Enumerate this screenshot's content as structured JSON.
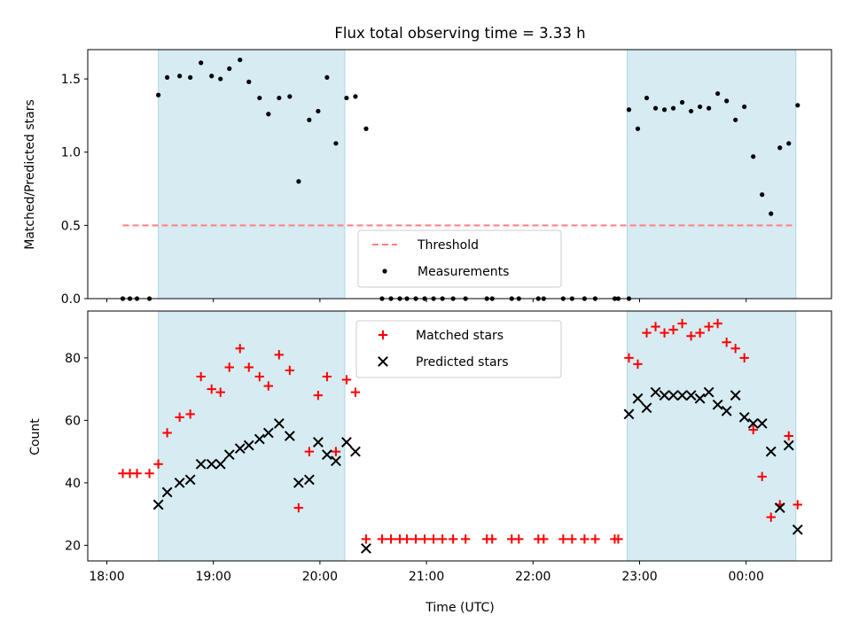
{
  "chart_data": [
    {
      "type": "scatter",
      "title": "Flux total observing time = 3.33 h",
      "ylabel": "Matched/Predicted stars",
      "xlabel": "",
      "xlim": [
        "18:00",
        "01:00"
      ],
      "ylim": [
        0,
        1.7
      ],
      "yticks": [
        "0.0",
        "0.5",
        "1.0",
        "1.5"
      ],
      "grid": false,
      "legend_position": "bottom-center",
      "shaded_intervals": [
        [
          "18:29",
          "20:14"
        ],
        [
          "22:53",
          "00:28"
        ]
      ],
      "threshold": {
        "name": "Threshold",
        "y": 0.5,
        "x_from": "18:09",
        "x_to": "00:28",
        "color": "#ff7f7f"
      },
      "series": [
        {
          "name": "Measurements",
          "marker": "dot",
          "color": "#000000",
          "points": [
            [
              "18:09",
              0
            ],
            [
              "18:13",
              0
            ],
            [
              "18:17",
              0
            ],
            [
              "18:24",
              0
            ],
            [
              "18:29",
              1.39
            ],
            [
              "18:34",
              1.51
            ],
            [
              "18:41",
              1.52
            ],
            [
              "18:47",
              1.51
            ],
            [
              "18:53",
              1.61
            ],
            [
              "18:59",
              1.52
            ],
            [
              "19:04",
              1.5
            ],
            [
              "19:09",
              1.57
            ],
            [
              "19:15",
              1.63
            ],
            [
              "19:20",
              1.48
            ],
            [
              "19:26",
              1.37
            ],
            [
              "19:31",
              1.26
            ],
            [
              "19:37",
              1.37
            ],
            [
              "19:43",
              1.38
            ],
            [
              "19:48",
              0.8
            ],
            [
              "19:54",
              1.22
            ],
            [
              "19:59",
              1.28
            ],
            [
              "20:04",
              1.51
            ],
            [
              "20:09",
              1.06
            ],
            [
              "20:15",
              1.37
            ],
            [
              "20:20",
              1.38
            ],
            [
              "20:26",
              1.16
            ],
            [
              "20:35",
              0
            ],
            [
              "20:40",
              0
            ],
            [
              "20:45",
              0
            ],
            [
              "20:49",
              0
            ],
            [
              "20:54",
              0
            ],
            [
              "20:59",
              0
            ],
            [
              "21:04",
              0
            ],
            [
              "21:09",
              0
            ],
            [
              "21:15",
              0
            ],
            [
              "21:22",
              0
            ],
            [
              "21:34",
              0
            ],
            [
              "21:37",
              0
            ],
            [
              "21:48",
              0
            ],
            [
              "21:52",
              0
            ],
            [
              "22:03",
              0
            ],
            [
              "22:06",
              0
            ],
            [
              "22:17",
              0
            ],
            [
              "22:22",
              0
            ],
            [
              "22:29",
              0
            ],
            [
              "22:35",
              0
            ],
            [
              "22:46",
              0
            ],
            [
              "22:48",
              0
            ],
            [
              "22:54",
              0
            ],
            [
              "22:54",
              1.29
            ],
            [
              "22:59",
              1.16
            ],
            [
              "23:04",
              1.37
            ],
            [
              "23:09",
              1.3
            ],
            [
              "23:14",
              1.29
            ],
            [
              "23:19",
              1.3
            ],
            [
              "23:24",
              1.34
            ],
            [
              "23:29",
              1.28
            ],
            [
              "23:34",
              1.31
            ],
            [
              "23:39",
              1.3
            ],
            [
              "23:44",
              1.4
            ],
            [
              "23:49",
              1.35
            ],
            [
              "23:54",
              1.22
            ],
            [
              "23:59",
              1.31
            ],
            [
              "00:04",
              0.97
            ],
            [
              "00:09",
              0.71
            ],
            [
              "00:14",
              0.58
            ],
            [
              "00:19",
              1.03
            ],
            [
              "00:24",
              1.06
            ],
            [
              "00:29",
              1.32
            ]
          ]
        }
      ],
      "xtick_labels": [
        "18:00",
        "19:00",
        "20:00",
        "21:00",
        "22:00",
        "23:00",
        "00:00"
      ]
    },
    {
      "type": "scatter",
      "title": "",
      "xlabel": "Time (UTC)",
      "ylabel": "Count",
      "xlim": [
        "18:00",
        "01:00"
      ],
      "ylim": [
        15,
        95
      ],
      "yticks": [
        "20",
        "40",
        "60",
        "80"
      ],
      "xtick_labels": [
        "18:00",
        "19:00",
        "20:00",
        "21:00",
        "22:00",
        "23:00",
        "00:00"
      ],
      "grid": false,
      "legend_position": "top-center",
      "shaded_intervals": [
        [
          "18:29",
          "20:14"
        ],
        [
          "22:53",
          "00:28"
        ]
      ],
      "series": [
        {
          "name": "Matched stars",
          "marker": "plus",
          "color": "#ff0000",
          "points": [
            [
              "18:09",
              43
            ],
            [
              "18:13",
              43
            ],
            [
              "18:17",
              43
            ],
            [
              "18:24",
              43
            ],
            [
              "18:29",
              46
            ],
            [
              "18:34",
              56
            ],
            [
              "18:41",
              61
            ],
            [
              "18:47",
              62
            ],
            [
              "18:53",
              74
            ],
            [
              "18:59",
              70
            ],
            [
              "19:04",
              69
            ],
            [
              "19:09",
              77
            ],
            [
              "19:15",
              83
            ],
            [
              "19:20",
              77
            ],
            [
              "19:26",
              74
            ],
            [
              "19:31",
              71
            ],
            [
              "19:37",
              81
            ],
            [
              "19:43",
              76
            ],
            [
              "19:48",
              32
            ],
            [
              "19:54",
              50
            ],
            [
              "19:59",
              68
            ],
            [
              "20:04",
              74
            ],
            [
              "20:09",
              50
            ],
            [
              "20:15",
              73
            ],
            [
              "20:20",
              69
            ],
            [
              "20:26",
              22
            ],
            [
              "20:35",
              22
            ],
            [
              "20:40",
              22
            ],
            [
              "20:45",
              22
            ],
            [
              "20:49",
              22
            ],
            [
              "20:54",
              22
            ],
            [
              "20:59",
              22
            ],
            [
              "21:04",
              22
            ],
            [
              "21:09",
              22
            ],
            [
              "21:15",
              22
            ],
            [
              "21:22",
              22
            ],
            [
              "21:34",
              22
            ],
            [
              "21:37",
              22
            ],
            [
              "21:48",
              22
            ],
            [
              "21:52",
              22
            ],
            [
              "22:03",
              22
            ],
            [
              "22:06",
              22
            ],
            [
              "22:17",
              22
            ],
            [
              "22:22",
              22
            ],
            [
              "22:29",
              22
            ],
            [
              "22:35",
              22
            ],
            [
              "22:46",
              22
            ],
            [
              "22:48",
              22
            ],
            [
              "22:54",
              80
            ],
            [
              "22:59",
              78
            ],
            [
              "23:04",
              88
            ],
            [
              "23:09",
              90
            ],
            [
              "23:14",
              88
            ],
            [
              "23:19",
              89
            ],
            [
              "23:24",
              91
            ],
            [
              "23:29",
              87
            ],
            [
              "23:34",
              88
            ],
            [
              "23:39",
              90
            ],
            [
              "23:44",
              91
            ],
            [
              "23:49",
              85
            ],
            [
              "23:54",
              83
            ],
            [
              "23:59",
              80
            ],
            [
              "00:04",
              57
            ],
            [
              "00:09",
              42
            ],
            [
              "00:14",
              29
            ],
            [
              "00:19",
              33
            ],
            [
              "00:24",
              55
            ],
            [
              "00:29",
              33
            ]
          ]
        },
        {
          "name": "Predicted stars",
          "marker": "x",
          "color": "#000000",
          "points": [
            [
              "18:29",
              33
            ],
            [
              "18:34",
              37
            ],
            [
              "18:41",
              40
            ],
            [
              "18:47",
              41
            ],
            [
              "18:53",
              46
            ],
            [
              "18:59",
              46
            ],
            [
              "19:04",
              46
            ],
            [
              "19:09",
              49
            ],
            [
              "19:15",
              51
            ],
            [
              "19:20",
              52
            ],
            [
              "19:26",
              54
            ],
            [
              "19:31",
              56
            ],
            [
              "19:37",
              59
            ],
            [
              "19:43",
              55
            ],
            [
              "19:48",
              40
            ],
            [
              "19:54",
              41
            ],
            [
              "19:59",
              53
            ],
            [
              "20:04",
              49
            ],
            [
              "20:09",
              47
            ],
            [
              "20:15",
              53
            ],
            [
              "20:20",
              50
            ],
            [
              "20:26",
              19
            ],
            [
              "22:54",
              62
            ],
            [
              "22:59",
              67
            ],
            [
              "23:04",
              64
            ],
            [
              "23:09",
              69
            ],
            [
              "23:14",
              68
            ],
            [
              "23:19",
              68
            ],
            [
              "23:24",
              68
            ],
            [
              "23:29",
              68
            ],
            [
              "23:34",
              67
            ],
            [
              "23:39",
              69
            ],
            [
              "23:44",
              65
            ],
            [
              "23:49",
              63
            ],
            [
              "23:54",
              68
            ],
            [
              "23:59",
              61
            ],
            [
              "00:04",
              59
            ],
            [
              "00:09",
              59
            ],
            [
              "00:14",
              50
            ],
            [
              "00:19",
              32
            ],
            [
              "00:24",
              52
            ],
            [
              "00:29",
              25
            ]
          ]
        }
      ]
    }
  ]
}
